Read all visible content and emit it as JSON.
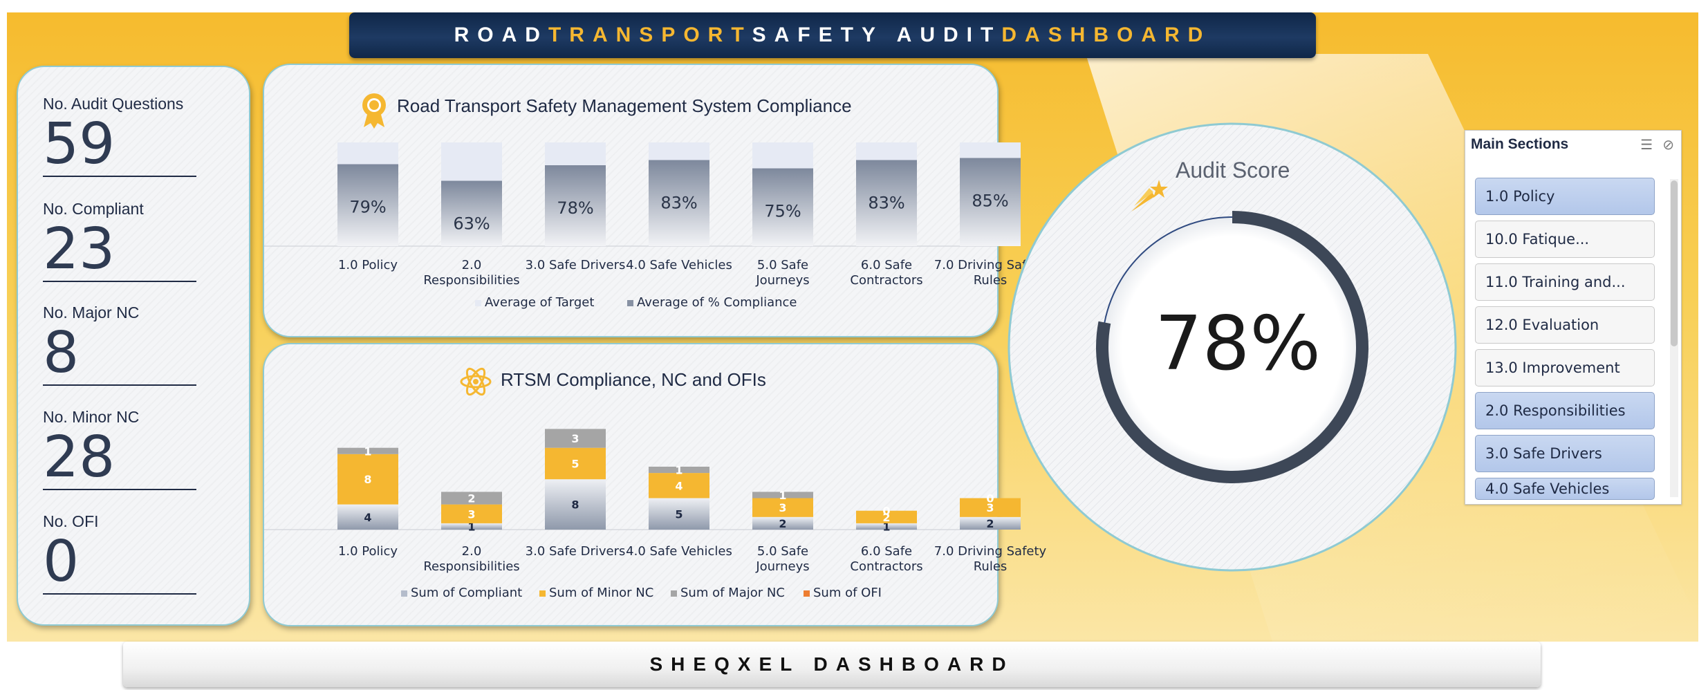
{
  "header": {
    "title_parts": [
      {
        "text": "ROAD ",
        "color": "white"
      },
      {
        "text": "TRANSPORT ",
        "color": "gold"
      },
      {
        "text": "SAFETY AUDIT ",
        "color": "white"
      },
      {
        "text": "DASHBOARD",
        "color": "gold"
      }
    ]
  },
  "kpis": [
    {
      "label": "No. Audit Questions",
      "value": "59"
    },
    {
      "label": "No. Compliant",
      "value": "23"
    },
    {
      "label": "No. Major NC",
      "value": "8"
    },
    {
      "label": "No. Minor NC",
      "value": "28"
    },
    {
      "label": "No. OFI",
      "value": "0"
    }
  ],
  "chart_data": [
    {
      "type": "bar",
      "title": "Road Transport Safety Management System Compliance",
      "categories": [
        "1.0 Policy",
        "2.0 Responsibilities",
        "3.0 Safe Drivers",
        "4.0 Safe Vehicles",
        "5.0 Safe Journeys",
        "6.0 Safe Contractors",
        "7.0 Driving Safety Rules"
      ],
      "category_lines": [
        [
          "1.0 Policy"
        ],
        [
          "2.0",
          "Responsibilities"
        ],
        [
          "3.0 Safe Drivers"
        ],
        [
          "4.0 Safe Vehicles"
        ],
        [
          "5.0 Safe",
          "Journeys"
        ],
        [
          "6.0 Safe",
          "Contractors"
        ],
        [
          "7.0 Driving Safety",
          "Rules"
        ]
      ],
      "series": [
        {
          "name": "Average of Target",
          "values": [
            100,
            100,
            100,
            100,
            100,
            100,
            100
          ],
          "color": "#e6eaf4"
        },
        {
          "name": "Average of % Compliance",
          "values": [
            79,
            63,
            78,
            83,
            75,
            83,
            85
          ],
          "color": "#8791a3"
        }
      ],
      "labels": [
        "79%",
        "63%",
        "78%",
        "83%",
        "75%",
        "83%",
        "85%"
      ],
      "ylim": [
        0,
        100
      ],
      "legend": "bottom"
    },
    {
      "type": "bar",
      "stacked": true,
      "title": "RTSM Compliance, NC and OFIs",
      "categories": [
        "1.0 Policy",
        "2.0 Responsibilities",
        "3.0 Safe Drivers",
        "4.0 Safe Vehicles",
        "5.0 Safe Journeys",
        "6.0 Safe Contractors",
        "7.0 Driving Safety Rules"
      ],
      "category_lines": [
        [
          "1.0 Policy"
        ],
        [
          "2.0",
          "Responsibilities"
        ],
        [
          "3.0 Safe Drivers"
        ],
        [
          "4.0 Safe Vehicles"
        ],
        [
          "5.0 Safe",
          "Journeys"
        ],
        [
          "6.0 Safe",
          "Contractors"
        ],
        [
          "7.0 Driving Safety",
          "Rules"
        ]
      ],
      "series": [
        {
          "name": "Sum of Compliant",
          "values": [
            4,
            1,
            8,
            5,
            2,
            1,
            2
          ],
          "color": "#b4bccb"
        },
        {
          "name": "Sum of Minor NC",
          "values": [
            8,
            3,
            5,
            4,
            3,
            2,
            3
          ],
          "color": "#f5b731"
        },
        {
          "name": "Sum of Major NC",
          "values": [
            1,
            2,
            3,
            1,
            1,
            0,
            0
          ],
          "color": "#a5a5a5"
        },
        {
          "name": "Sum of OFI",
          "values": [
            0,
            0,
            0,
            0,
            0,
            0,
            0
          ],
          "color": "#ed7d31"
        }
      ],
      "legend": "bottom"
    }
  ],
  "score": {
    "title": "Audit Score",
    "value": "78%",
    "fraction": 0.78
  },
  "slicer": {
    "title": "Main Sections",
    "items": [
      {
        "label": "1.0 Policy",
        "selected": true
      },
      {
        "label": "10.0 Fatique...",
        "selected": false
      },
      {
        "label": "11.0 Training and...",
        "selected": false
      },
      {
        "label": "12.0 Evaluation",
        "selected": false
      },
      {
        "label": "13.0 Improvement",
        "selected": false
      },
      {
        "label": "2.0 Responsibilities",
        "selected": true
      },
      {
        "label": "3.0 Safe Drivers",
        "selected": true
      },
      {
        "label": "4.0 Safe Vehicles",
        "selected": true
      }
    ]
  },
  "footer": {
    "title": "SHEQXEL DASHBOARD"
  },
  "icons": {
    "award": "award-ribbon-icon",
    "atom": "atom-icon",
    "star": "shooting-star-icon",
    "multi_select": "multi-select-icon",
    "clear_filter": "clear-filter-icon"
  }
}
